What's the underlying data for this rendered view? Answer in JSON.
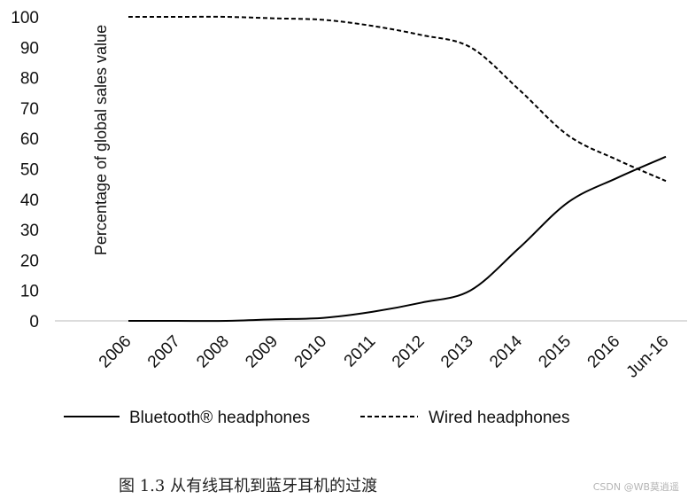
{
  "chart_data": {
    "type": "line",
    "title": "",
    "ylabel": "Percentage of global sales value",
    "xlabel": "",
    "categories": [
      "2006",
      "2007",
      "2008",
      "2009",
      "2010",
      "2011",
      "2012",
      "2013",
      "2014",
      "2015",
      "2016",
      "Jun-16"
    ],
    "y_ticks": [
      0,
      10,
      20,
      30,
      40,
      50,
      60,
      70,
      80,
      90,
      100
    ],
    "ylim": [
      0,
      100
    ],
    "grid": false,
    "legend_position": "bottom",
    "series": [
      {
        "name": "Bluetooth® headphones",
        "style": "solid",
        "color": "#000000",
        "values": [
          0,
          0,
          0,
          0.5,
          1,
          3,
          6,
          10,
          24,
          39,
          47,
          54
        ]
      },
      {
        "name": "Wired headphones",
        "style": "dashed",
        "color": "#000000",
        "values": [
          100,
          100,
          100,
          99.5,
          99,
          97,
          94,
          90,
          76,
          61,
          53,
          46
        ]
      }
    ]
  },
  "caption": "图 1.3 从有线耳机到蓝牙耳机的过渡",
  "watermark": "CSDN @WB莫逍遥"
}
